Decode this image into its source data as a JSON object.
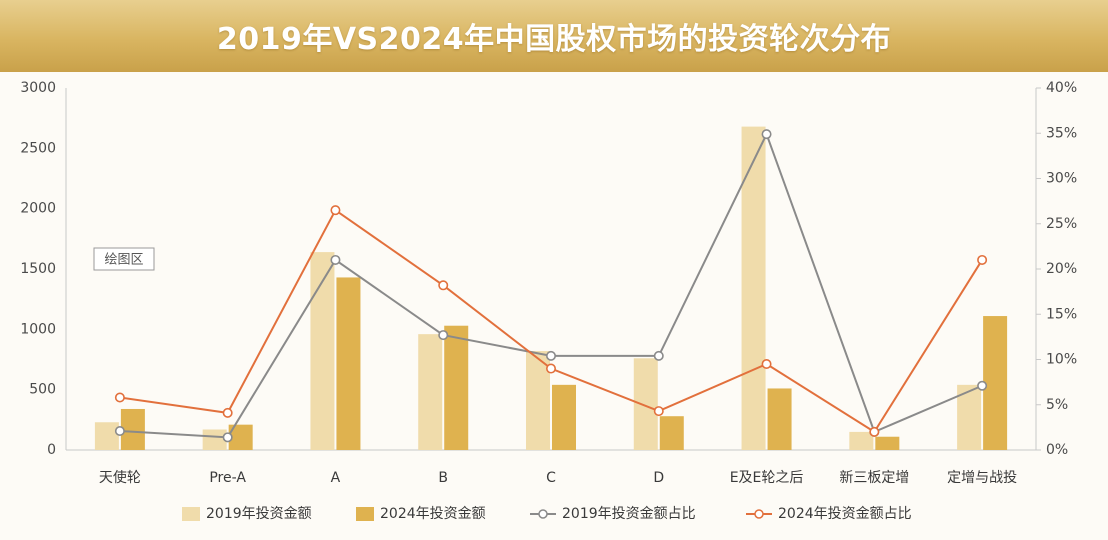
{
  "header": {
    "title": "2019年VS2024年中国股权市场的投资轮次分布"
  },
  "plot_area_tag": "绘图区",
  "colors": {
    "bar2019": "#f0dcab",
    "bar2024": "#dfb24f",
    "line2019": "#8a8a8a",
    "line2024": "#e2703c",
    "banner": "#d9b561"
  },
  "chart_data": {
    "type": "bar",
    "title": "2019年VS2024年中国股权市场的投资轮次分布",
    "categories": [
      "天使轮",
      "Pre-A",
      "A",
      "B",
      "C",
      "D",
      "E及E轮之后",
      "新三板定增",
      "定增与战投"
    ],
    "y_left": {
      "ylim": [
        0,
        3000
      ],
      "ticks": [
        "3000",
        "2500",
        "2000",
        "1500",
        "1000",
        "500",
        "0"
      ]
    },
    "y_right": {
      "ylim": [
        0,
        40
      ],
      "ticks": [
        "40%",
        "35%",
        "30%",
        "25%",
        "20%",
        "15%",
        "10%",
        "5%",
        "0%"
      ]
    },
    "series": [
      {
        "name": "2019年投资金额",
        "kind": "bar",
        "axis": "left",
        "values": [
          230,
          170,
          1640,
          960,
          820,
          760,
          2680,
          150,
          540
        ]
      },
      {
        "name": "2024年投资金额",
        "kind": "bar",
        "axis": "left",
        "values": [
          340,
          210,
          1430,
          1030,
          540,
          280,
          510,
          110,
          1110
        ]
      },
      {
        "name": "2019年投资金额占比",
        "kind": "line",
        "axis": "right",
        "values": [
          2.1,
          1.4,
          21.0,
          12.7,
          10.4,
          10.4,
          34.9,
          2.0,
          7.1
        ]
      },
      {
        "name": "2024年投资金额占比",
        "kind": "line",
        "axis": "right",
        "values": [
          5.8,
          4.1,
          26.5,
          18.2,
          9.0,
          4.3,
          9.5,
          2.0,
          21.0
        ]
      }
    ],
    "legend_position": "bottom",
    "grid": false
  }
}
